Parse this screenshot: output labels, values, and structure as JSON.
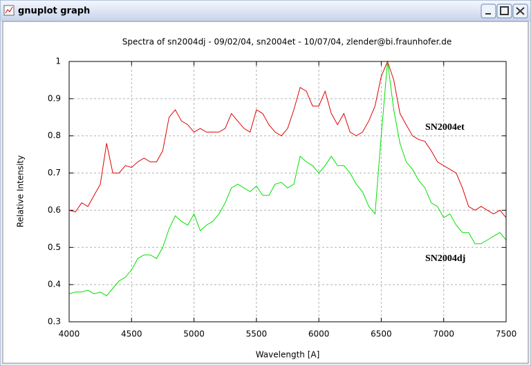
{
  "window": {
    "title": "gnuplot graph"
  },
  "chart_data": {
    "type": "line",
    "title": "Spectra of sn2004dj - 09/02/04, sn2004et - 10/07/04, zlender@bi.fraunhofer.de",
    "xlabel": "Wavelength [A]",
    "ylabel": "Relative Intensity",
    "x": [
      4000,
      4050,
      4100,
      4150,
      4200,
      4250,
      4300,
      4350,
      4400,
      4450,
      4500,
      4550,
      4600,
      4650,
      4700,
      4750,
      4800,
      4850,
      4900,
      4950,
      5000,
      5050,
      5100,
      5150,
      5200,
      5250,
      5300,
      5350,
      5400,
      5450,
      5500,
      5550,
      5600,
      5650,
      5700,
      5750,
      5800,
      5850,
      5900,
      5950,
      6000,
      6050,
      6100,
      6150,
      6200,
      6250,
      6300,
      6350,
      6400,
      6450,
      6500,
      6550,
      6600,
      6650,
      6700,
      6750,
      6800,
      6850,
      6900,
      6950,
      7000,
      7050,
      7100,
      7150,
      7200,
      7250,
      7300,
      7350,
      7400,
      7450,
      7500
    ],
    "series": [
      {
        "name": "SN2004et",
        "color": "#e00000",
        "values": [
          0.6,
          0.595,
          0.62,
          0.61,
          0.64,
          0.67,
          0.78,
          0.7,
          0.7,
          0.72,
          0.715,
          0.73,
          0.74,
          0.73,
          0.73,
          0.76,
          0.85,
          0.87,
          0.84,
          0.83,
          0.81,
          0.82,
          0.81,
          0.81,
          0.81,
          0.82,
          0.86,
          0.84,
          0.82,
          0.81,
          0.87,
          0.86,
          0.83,
          0.81,
          0.8,
          0.82,
          0.87,
          0.93,
          0.92,
          0.88,
          0.88,
          0.92,
          0.86,
          0.83,
          0.86,
          0.81,
          0.8,
          0.81,
          0.84,
          0.88,
          0.96,
          1.0,
          0.95,
          0.86,
          0.83,
          0.8,
          0.79,
          0.785,
          0.76,
          0.73,
          0.72,
          0.71,
          0.7,
          0.66,
          0.61,
          0.6,
          0.61,
          0.6,
          0.59,
          0.6,
          0.58
        ]
      },
      {
        "name": "SN2004dj",
        "color": "#00e000",
        "values": [
          0.375,
          0.38,
          0.38,
          0.385,
          0.375,
          0.38,
          0.37,
          0.39,
          0.41,
          0.42,
          0.44,
          0.47,
          0.48,
          0.48,
          0.47,
          0.5,
          0.55,
          0.585,
          0.57,
          0.56,
          0.59,
          0.545,
          0.56,
          0.57,
          0.59,
          0.62,
          0.66,
          0.67,
          0.66,
          0.65,
          0.665,
          0.64,
          0.64,
          0.67,
          0.675,
          0.66,
          0.67,
          0.745,
          0.73,
          0.72,
          0.7,
          0.72,
          0.745,
          0.72,
          0.72,
          0.7,
          0.67,
          0.65,
          0.61,
          0.59,
          0.8,
          1.0,
          0.87,
          0.78,
          0.73,
          0.71,
          0.68,
          0.66,
          0.62,
          0.61,
          0.58,
          0.59,
          0.56,
          0.54,
          0.54,
          0.51,
          0.51,
          0.52,
          0.53,
          0.54,
          0.52
        ]
      }
    ],
    "label_color": "#cc0000",
    "xlim": [
      4000,
      7500
    ],
    "xticks": [
      4000,
      4500,
      5000,
      5500,
      6000,
      6500,
      7000,
      7500
    ],
    "ylim": [
      0.3,
      1
    ],
    "yticks": [
      0.3,
      0.4,
      0.5,
      0.6,
      0.7,
      0.8,
      0.9,
      1
    ],
    "grid": true
  }
}
